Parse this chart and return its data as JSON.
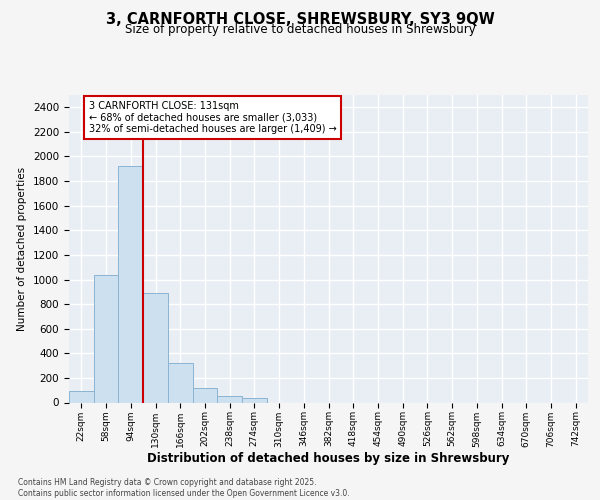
{
  "title_line1": "3, CARNFORTH CLOSE, SHREWSBURY, SY3 9QW",
  "title_line2": "Size of property relative to detached houses in Shrewsbury",
  "xlabel": "Distribution of detached houses by size in Shrewsbury",
  "ylabel": "Number of detached properties",
  "footer_line1": "Contains HM Land Registry data © Crown copyright and database right 2025.",
  "footer_line2": "Contains public sector information licensed under the Open Government Licence v3.0.",
  "bin_labels": [
    "22sqm",
    "58sqm",
    "94sqm",
    "130sqm",
    "166sqm",
    "202sqm",
    "238sqm",
    "274sqm",
    "310sqm",
    "346sqm",
    "382sqm",
    "418sqm",
    "454sqm",
    "490sqm",
    "526sqm",
    "562sqm",
    "598sqm",
    "634sqm",
    "670sqm",
    "706sqm",
    "742sqm"
  ],
  "bar_values": [
    90,
    1040,
    1920,
    890,
    320,
    120,
    50,
    35,
    0,
    0,
    0,
    0,
    0,
    0,
    0,
    0,
    0,
    0,
    0,
    0,
    0
  ],
  "bar_color": "#cce0f0",
  "bar_edge_color": "#8ab4d4",
  "ylim": [
    0,
    2500
  ],
  "yticks": [
    0,
    200,
    400,
    600,
    800,
    1000,
    1200,
    1400,
    1600,
    1800,
    2000,
    2200,
    2400
  ],
  "vline_color": "#cc0000",
  "vline_x_bin_index": 3,
  "annotation_text_line1": "3 CARNFORTH CLOSE: 131sqm",
  "annotation_text_line2": "← 68% of detached houses are smaller (3,033)",
  "annotation_text_line3": "32% of semi-detached houses are larger (1,409) →",
  "annotation_box_color": "#cc0000",
  "bg_color": "#e8eef4",
  "grid_color": "#ffffff",
  "fig_bg": "#f5f5f5"
}
